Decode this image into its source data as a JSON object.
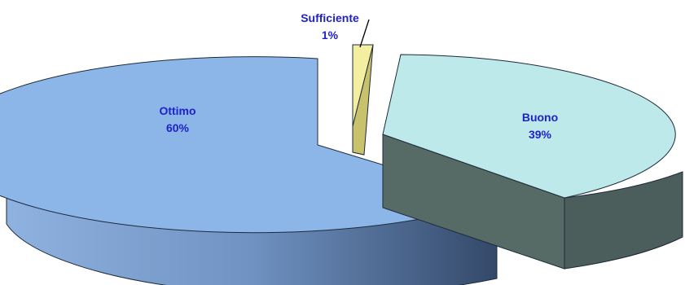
{
  "chart_data": {
    "type": "pie",
    "title": "",
    "style": "3d-exploded",
    "slices": [
      {
        "name": "Ottimo",
        "percent_label": "60%",
        "value": 60,
        "color": "#8cb4e6"
      },
      {
        "name": "Buono",
        "percent_label": "39%",
        "value": 39,
        "color": "#bfe8e8"
      },
      {
        "name": "Sufficiente",
        "percent_label": "1%",
        "value": 1,
        "color": "#f4eea0"
      }
    ]
  }
}
